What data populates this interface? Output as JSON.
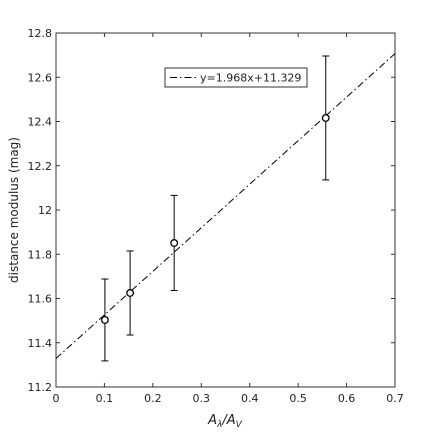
{
  "chart_data": {
    "type": "errorbar",
    "xlabel": [
      "A",
      "λ",
      "/A",
      "V"
    ],
    "ylabel": "distance modulus (mag)",
    "xlim": [
      0,
      0.7
    ],
    "xticks": [
      0,
      0.1,
      0.2,
      0.3,
      0.4,
      0.5,
      0.6,
      0.7
    ],
    "ylim": [
      11.2,
      12.8
    ],
    "yticks": [
      11.2,
      11.4,
      11.6,
      11.8,
      12,
      12.2,
      12.4,
      12.6,
      12.8
    ],
    "x": [
      0.101,
      0.153,
      0.244,
      0.557
    ],
    "values": [
      11.503,
      11.625,
      11.851,
      12.416
    ],
    "errors": [
      0.185,
      0.19,
      0.215,
      0.28
    ],
    "color": "#000000",
    "fit": {
      "name": "y=1.968x+11.329",
      "x": [
        0,
        0.7
      ],
      "values": [
        11.329,
        12.707
      ]
    },
    "legend": "top"
  }
}
